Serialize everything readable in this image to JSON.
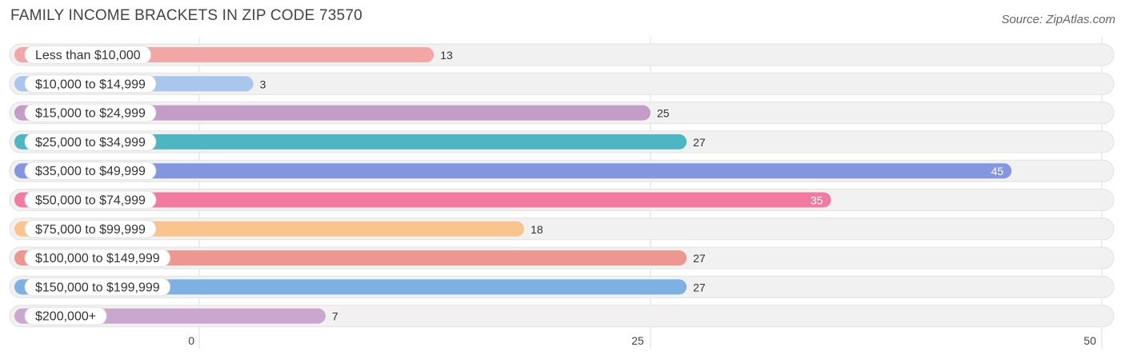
{
  "header": {
    "title": "FAMILY INCOME BRACKETS IN ZIP CODE 73570",
    "source": "Source: ZipAtlas.com"
  },
  "chart_data": {
    "type": "bar",
    "orientation": "horizontal",
    "title": "FAMILY INCOME BRACKETS IN ZIP CODE 73570",
    "categories": [
      "Less than $10,000",
      "$10,000 to $14,999",
      "$15,000 to $24,999",
      "$25,000 to $34,999",
      "$35,000 to $49,999",
      "$50,000 to $74,999",
      "$75,000 to $99,999",
      "$100,000 to $149,999",
      "$150,000 to $199,999",
      "$200,000+"
    ],
    "values": [
      13,
      3,
      25,
      27,
      45,
      35,
      18,
      27,
      27,
      7
    ],
    "colors": [
      "#f2a7a6",
      "#a9c6ec",
      "#c39dc8",
      "#4db6c3",
      "#8496e0",
      "#f27aa0",
      "#f9c48d",
      "#ee9690",
      "#7fb0e4",
      "#caa7cf"
    ],
    "xlim": [
      0,
      50
    ],
    "xticks": [
      0,
      25,
      50
    ],
    "grid": true,
    "legend": "none"
  }
}
